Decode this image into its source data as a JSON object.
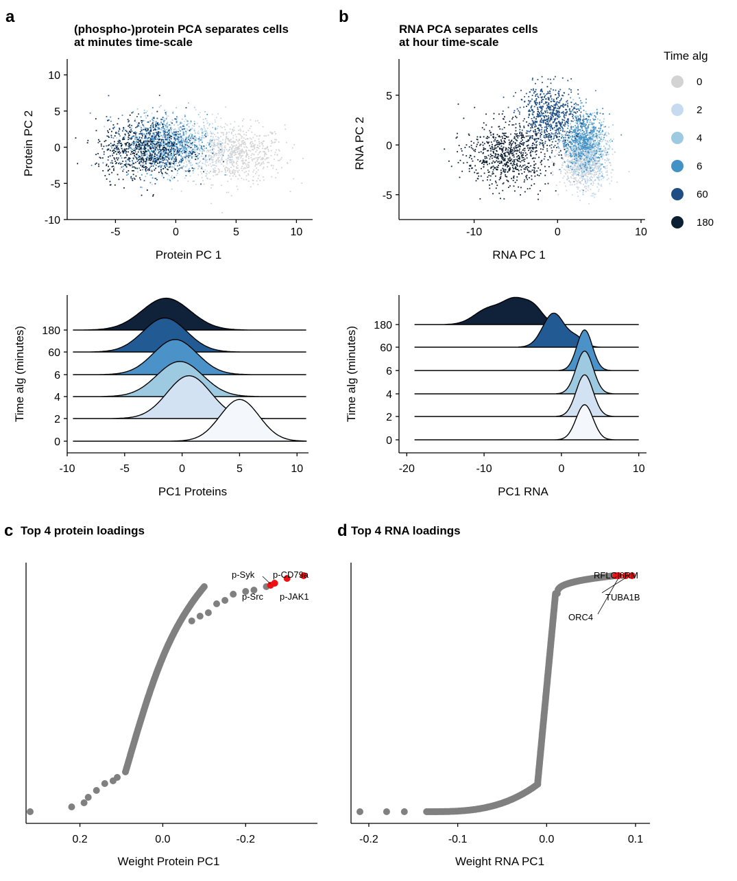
{
  "figure": {
    "a": {
      "label": "a",
      "title_lines": [
        "(phospho-)protein PCA separates cells",
        "at minutes time-scale"
      ],
      "xlabel": "Protein PC 1",
      "ylabel": "Protein PC 2"
    },
    "b": {
      "label": "b",
      "title_lines": [
        "RNA PCA separates cells",
        "at hour time-scale"
      ],
      "xlabel": "RNA PC 1",
      "ylabel": "RNA PC 2"
    },
    "a2": {
      "xlabel": "PC1 Proteins",
      "ylabel": "Time alg (minutes)"
    },
    "b2": {
      "xlabel": "PC1 RNA",
      "ylabel": "Time alg (minutes)"
    },
    "c": {
      "label": "c",
      "title": "Top 4 protein loadings",
      "xlabel": "Weight Protein PC1"
    },
    "d": {
      "label": "d",
      "title": "Top 4 RNA loadings",
      "xlabel": "Weight RNA PC1"
    },
    "legend": {
      "title": "Time alg",
      "items": [
        {
          "label": "0",
          "color": "#d3d3d3"
        },
        {
          "label": "2",
          "color": "#c6dbef"
        },
        {
          "label": "4",
          "color": "#9ecae1"
        },
        {
          "label": "6",
          "color": "#4292c6"
        },
        {
          "label": "60",
          "color": "#1f4e84"
        },
        {
          "label": "180",
          "color": "#0d1f33"
        }
      ]
    }
  },
  "chart_data": [
    {
      "id": "a",
      "type": "scatter",
      "title": "(phospho-)protein PCA separates cells at minutes time-scale",
      "xlabel": "Protein PC 1",
      "ylabel": "Protein PC 2",
      "xlim": [
        -9,
        11
      ],
      "ylim": [
        -10,
        12
      ],
      "xticks": [
        -5,
        0,
        5,
        10
      ],
      "yticks": [
        -10,
        -5,
        0,
        5,
        10
      ],
      "grid": false,
      "note": "dense point clouds; per-group approximate centers and spreads",
      "series": [
        {
          "name": "0",
          "center": [
            5,
            -1
          ],
          "spread": [
            2.0,
            2.0
          ]
        },
        {
          "name": "2",
          "center": [
            0.5,
            0.5
          ],
          "spread": [
            1.8,
            2.0
          ]
        },
        {
          "name": "4",
          "center": [
            -0.5,
            0.3
          ],
          "spread": [
            1.8,
            2.0
          ]
        },
        {
          "name": "6",
          "center": [
            -1,
            0.5
          ],
          "spread": [
            1.8,
            2.0
          ]
        },
        {
          "name": "60",
          "center": [
            -2,
            0
          ],
          "spread": [
            1.8,
            2.0
          ]
        },
        {
          "name": "180",
          "center": [
            -3,
            -0.5
          ],
          "spread": [
            1.8,
            2.0
          ]
        }
      ]
    },
    {
      "id": "b",
      "type": "scatter",
      "title": "RNA PCA separates cells at hour time-scale",
      "xlabel": "RNA PC 1",
      "ylabel": "RNA PC 2",
      "xlim": [
        -19,
        10
      ],
      "ylim": [
        -7.5,
        8.5
      ],
      "xticks": [
        -10,
        0,
        10
      ],
      "yticks": [
        -5,
        0,
        5
      ],
      "grid": false,
      "series": [
        {
          "name": "0",
          "center": [
            3,
            -1.5
          ],
          "spread": [
            1.3,
            1.3
          ]
        },
        {
          "name": "2",
          "center": [
            3.5,
            -1.5
          ],
          "spread": [
            1.3,
            1.5
          ]
        },
        {
          "name": "4",
          "center": [
            3.5,
            0
          ],
          "spread": [
            1.3,
            1.5
          ]
        },
        {
          "name": "6",
          "center": [
            3,
            0.5
          ],
          "spread": [
            1.3,
            1.5
          ]
        },
        {
          "name": "60",
          "center": [
            -1,
            3
          ],
          "spread": [
            1.8,
            1.5
          ]
        },
        {
          "name": "180",
          "center": [
            -6,
            -1
          ],
          "spread": [
            2.5,
            1.6
          ]
        }
      ]
    },
    {
      "id": "a2",
      "type": "area",
      "subtype": "ridgeline",
      "xlabel": "PC1 Proteins",
      "ylabel": "Time alg (minutes)",
      "xlim": [
        -10,
        11
      ],
      "xticks": [
        -10,
        -5,
        0,
        5,
        10
      ],
      "categories": [
        "0",
        "2",
        "4",
        "6",
        "60",
        "180"
      ],
      "series": [
        {
          "name": "0",
          "x_range": [
            -9.5,
            10.8
          ],
          "peak": 5,
          "sd": 1.7,
          "height": 1.9
        },
        {
          "name": "2",
          "x_range": [
            -9.5,
            10.8
          ],
          "peak": 0.6,
          "sd": 1.9,
          "height": 1.95
        },
        {
          "name": "4",
          "x_range": [
            -9.5,
            10.8
          ],
          "peak": -0.2,
          "sd": 2.0,
          "height": 1.6
        },
        {
          "name": "6",
          "x_range": [
            -9.5,
            10.8
          ],
          "peak": -0.6,
          "sd": 1.9,
          "height": 1.6
        },
        {
          "name": "60",
          "x_range": [
            -9.5,
            10.8
          ],
          "peak": -1.5,
          "sd": 1.9,
          "height": 1.55
        },
        {
          "name": "180",
          "x_range": [
            -9.5,
            10.8
          ],
          "peak": -1.4,
          "sd": 2.1,
          "height": 1.45
        }
      ]
    },
    {
      "id": "b2",
      "type": "area",
      "subtype": "ridgeline",
      "xlabel": "PC1 RNA",
      "ylabel": "Time alg (minutes)",
      "xlim": [
        -21,
        11
      ],
      "xticks": [
        -20,
        -10,
        0,
        10
      ],
      "categories": [
        "0",
        "2",
        "4",
        "6",
        "60",
        "180"
      ],
      "series": [
        {
          "name": "0",
          "x_range": [
            -19,
            10
          ],
          "peak": 3,
          "sd": 1.1,
          "height": 1.6
        },
        {
          "name": "2",
          "x_range": [
            -19,
            10
          ],
          "peak": 3,
          "sd": 1.1,
          "height": 1.9
        },
        {
          "name": "4",
          "x_range": [
            -19,
            10
          ],
          "peak": 3,
          "sd": 1.1,
          "height": 1.95
        },
        {
          "name": "6",
          "x_range": [
            -19,
            10
          ],
          "peak": 3,
          "sd": 1.0,
          "height": 1.85
        },
        {
          "name": "60",
          "x_range": [
            -19,
            10
          ],
          "peak": -1,
          "sd": 1.5,
          "height": 1.55
        },
        {
          "name": "180",
          "x_range": [
            -19,
            10
          ],
          "peak": -6,
          "sd": 2.8,
          "height": 1.25
        }
      ]
    },
    {
      "id": "c",
      "type": "scatter",
      "title": "Top 4 protein loadings",
      "xlabel": "Weight Protein PC1",
      "x_reversed": true,
      "xlim": [
        0.33,
        -0.36
      ],
      "xticks": [
        0.2,
        0.0,
        -0.2
      ],
      "xticklabels": [
        "0.2",
        "0.0",
        "-0.2"
      ],
      "note": "sorted loadings, y = rank",
      "highlights": [
        {
          "label": "p-Syk",
          "weight": -0.26
        },
        {
          "label": "p-CD79a",
          "weight": -0.34
        },
        {
          "label": "p-Src",
          "weight": -0.27
        },
        {
          "label": "p-JAK1",
          "weight": -0.3
        }
      ]
    },
    {
      "id": "d",
      "type": "scatter",
      "title": "Top 4 RNA loadings",
      "xlabel": "Weight RNA PC1",
      "xlim": [
        -0.22,
        0.11
      ],
      "xticks": [
        -0.2,
        -0.1,
        0.0,
        0.1
      ],
      "xticklabels": [
        "-0.2",
        "-0.1",
        "0.0",
        "0.1"
      ],
      "note": "sorted loadings, y = rank",
      "highlights": [
        {
          "label": "RFC2",
          "weight": 0.078
        },
        {
          "label": "ORC4",
          "weight": 0.081
        },
        {
          "label": "TUBA1B",
          "weight": 0.089
        },
        {
          "label": "SLC1A5",
          "weight": 0.096
        }
      ],
      "overlapping_labels_text": "RFLCI6RM",
      "visible_labels": [
        "ORC4",
        "TUBA1B"
      ]
    }
  ]
}
